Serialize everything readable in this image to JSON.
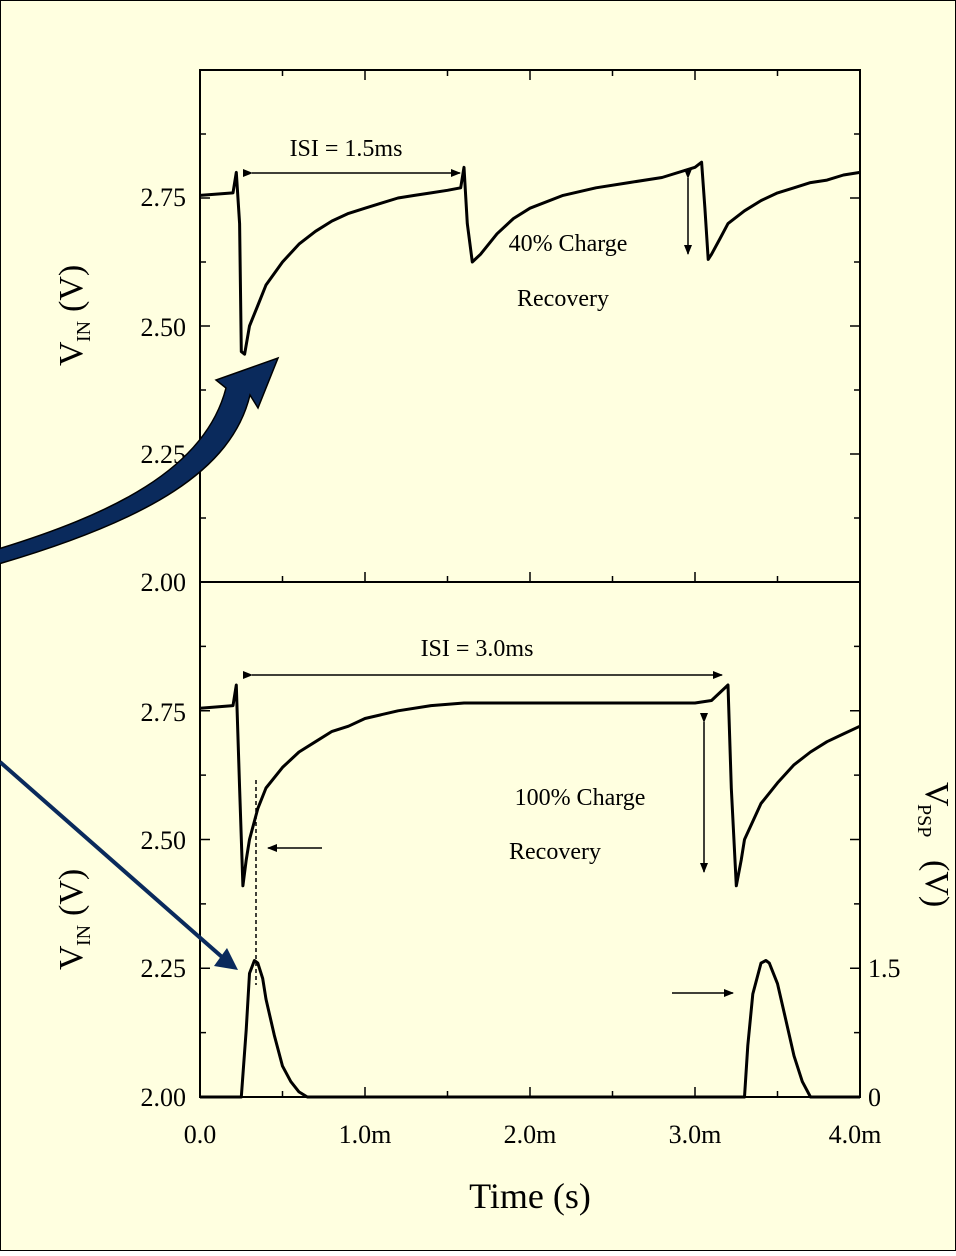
{
  "colors": {
    "background": "#ffffe0",
    "border": "#000000",
    "trace": "#000000",
    "callout_arrow": "#0a2a5c"
  },
  "chart_data": [
    {
      "type": "line",
      "panel": "top",
      "xlabel": "",
      "ylabel_main": "V",
      "ylabel_sub": "IN",
      "ylabel_unit": "(V)",
      "xlim": [
        0,
        0.004
      ],
      "ylim": [
        2.0,
        3.0
      ],
      "yticks": [
        "2.00",
        "2.25",
        "2.50",
        "2.75"
      ],
      "series": [
        {
          "values_description_free": true,
          "x": [
            0,
            0.0002,
            0.00022,
            0.00024,
            0.00025,
            0.00027,
            0.0003,
            0.00035,
            0.0004,
            0.0005,
            0.0006,
            0.0007,
            0.0008,
            0.0009,
            0.001,
            0.0011,
            0.0012,
            0.0013,
            0.0014,
            0.0015,
            0.00158,
            0.0016,
            0.00162,
            0.00165,
            0.0017,
            0.0018,
            0.0019,
            0.002,
            0.0022,
            0.0024,
            0.0026,
            0.0028,
            0.003,
            0.00304,
            0.00306,
            0.00308,
            0.0031,
            0.00315,
            0.0032,
            0.0033,
            0.0034,
            0.0035,
            0.0036,
            0.0037,
            0.0038,
            0.0039,
            0.004
          ],
          "y": [
            2.755,
            2.76,
            2.8,
            2.7,
            2.45,
            2.445,
            2.5,
            2.54,
            2.58,
            2.625,
            2.66,
            2.685,
            2.705,
            2.72,
            2.73,
            2.74,
            2.75,
            2.755,
            2.76,
            2.765,
            2.77,
            2.81,
            2.7,
            2.625,
            2.64,
            2.68,
            2.71,
            2.73,
            2.755,
            2.77,
            2.78,
            2.79,
            2.81,
            2.82,
            2.73,
            2.63,
            2.64,
            2.67,
            2.7,
            2.725,
            2.745,
            2.76,
            2.77,
            2.78,
            2.785,
            2.795,
            2.8
          ]
        }
      ],
      "annotations": {
        "isi_label": "ISI = 1.5ms",
        "recovery_line1": "40% Charge",
        "recovery_line2": "Recovery"
      }
    },
    {
      "type": "line",
      "panel": "bottom",
      "xlabel": "Time (s)",
      "ylabel_main": "V",
      "ylabel_sub": "IN",
      "ylabel_unit": "(V)",
      "right_ylabel_main": "V",
      "right_ylabel_sub": "PSP",
      "right_ylabel_unit": "(V)",
      "xlim": [
        0,
        0.004
      ],
      "xticks": [
        "0.0",
        "1.0m",
        "2.0m",
        "3.0m",
        "4.0m"
      ],
      "ylim": [
        2.0,
        3.0
      ],
      "yticks": [
        "2.00",
        "2.25",
        "2.50",
        "2.75"
      ],
      "right_yticks": [
        "0",
        "1.5"
      ],
      "series": [
        {
          "x": [
            0,
            0.0002,
            0.00022,
            0.00024,
            0.00026,
            0.00028,
            0.0003,
            0.00035,
            0.0004,
            0.0005,
            0.0006,
            0.0007,
            0.0008,
            0.0009,
            0.001,
            0.0012,
            0.0014,
            0.0016,
            0.0018,
            0.002,
            0.0022,
            0.0024,
            0.0026,
            0.0028,
            0.003,
            0.0031,
            0.0032,
            0.00322,
            0.00325,
            0.00328,
            0.0033,
            0.0034,
            0.0035,
            0.0036,
            0.0037,
            0.0038,
            0.0039,
            0.004
          ],
          "y": [
            2.755,
            2.76,
            2.8,
            2.6,
            2.41,
            2.46,
            2.5,
            2.56,
            2.6,
            2.64,
            2.67,
            2.69,
            2.71,
            2.72,
            2.735,
            2.75,
            2.76,
            2.765,
            2.765,
            2.765,
            2.765,
            2.765,
            2.765,
            2.765,
            2.765,
            2.77,
            2.8,
            2.6,
            2.41,
            2.46,
            2.5,
            2.57,
            2.61,
            2.645,
            2.67,
            2.69,
            2.705,
            2.72
          ]
        },
        {
          "x": [
            0,
            0.00025,
            0.00028,
            0.0003,
            0.00033,
            0.00035,
            0.00038,
            0.0004,
            0.00045,
            0.0005,
            0.00055,
            0.0006,
            0.00065,
            0.0007,
            0.0033,
            0.00332,
            0.00335,
            0.0034,
            0.00343,
            0.00345,
            0.0035,
            0.00355,
            0.0036,
            0.00365,
            0.0037,
            0.004
          ],
          "y": [
            2.0,
            2.0,
            2.13,
            2.24,
            2.265,
            2.26,
            2.23,
            2.19,
            2.12,
            2.06,
            2.03,
            2.01,
            2.0,
            2.0,
            2.0,
            2.1,
            2.2,
            2.26,
            2.265,
            2.26,
            2.22,
            2.15,
            2.08,
            2.03,
            2.0,
            2.0
          ]
        }
      ],
      "annotations": {
        "isi_label": "ISI = 3.0ms",
        "recovery_line1": "100% Charge",
        "recovery_line2": "Recovery"
      }
    }
  ]
}
